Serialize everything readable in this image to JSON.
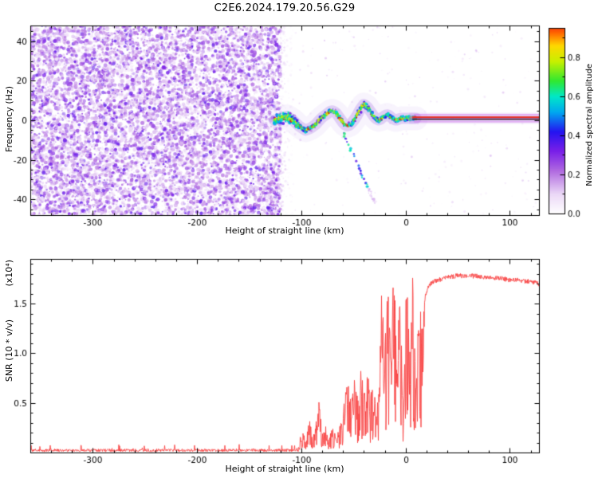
{
  "title": "C2E6.2024.179.20.56.G29",
  "chart_data": [
    {
      "type": "heatmap",
      "name": "spectrogram",
      "title": "C2E6.2024.179.20.56.G29",
      "xlabel": "Height of straight line (km)",
      "ylabel": "Frequency (Hz)",
      "xlim": [
        -360,
        128
      ],
      "ylim": [
        -48,
        48
      ],
      "xticks": [
        -300,
        -200,
        -100,
        0,
        100
      ],
      "yticks": [
        -40,
        -20,
        0,
        20,
        40
      ],
      "xticks_minor_step": 20,
      "yticks_minor_step": 5,
      "grid": false,
      "colorbar": {
        "label": "Normalized spectral amplitude",
        "ticks": [
          0.0,
          0.2,
          0.4,
          0.6,
          0.8
        ],
        "vmax": 0.95,
        "stops": [
          [
            0,
            "#ffffff"
          ],
          [
            0.1,
            "#ecd9f7"
          ],
          [
            0.22,
            "#b06ae0"
          ],
          [
            0.32,
            "#7a1fe8"
          ],
          [
            0.42,
            "#2414f0"
          ],
          [
            0.52,
            "#00a8f0"
          ],
          [
            0.6,
            "#00e8c8"
          ],
          [
            0.68,
            "#30e830"
          ],
          [
            0.78,
            "#c8f000"
          ],
          [
            0.86,
            "#ffd800"
          ],
          [
            0.93,
            "#ff6000"
          ],
          [
            1,
            "#e00028"
          ]
        ]
      },
      "noise_region": {
        "x_range": [
          -360,
          -120
        ],
        "amp_range": [
          0.06,
          0.36
        ],
        "note": "dense purple speckle noise across full frequency band"
      },
      "signal_path": [
        [
          -126,
          0
        ],
        [
          -120,
          1
        ],
        [
          -114,
          2
        ],
        [
          -108,
          0
        ],
        [
          -102,
          -3
        ],
        [
          -96,
          -5
        ],
        [
          -91,
          -4
        ],
        [
          -86,
          -2
        ],
        [
          -81,
          1
        ],
        [
          -76,
          3
        ],
        [
          -71,
          5
        ],
        [
          -67,
          4
        ],
        [
          -63,
          1
        ],
        [
          -59,
          -2
        ],
        [
          -55,
          -3
        ],
        [
          -51,
          -1
        ],
        [
          -47,
          2
        ],
        [
          -43,
          6
        ],
        [
          -40,
          8
        ],
        [
          -37,
          7
        ],
        [
          -33,
          4
        ],
        [
          -29,
          1
        ],
        [
          -25,
          0
        ],
        [
          -21,
          2
        ],
        [
          -17,
          3
        ],
        [
          -13,
          1
        ],
        [
          -9,
          0
        ],
        [
          -5,
          1
        ],
        [
          0,
          1
        ],
        [
          5,
          1
        ],
        [
          10,
          1
        ]
      ],
      "descending_streak": [
        [
          -60,
          -6
        ],
        [
          -36,
          -34
        ]
      ],
      "flat_line_region": {
        "x_range": [
          8,
          128
        ],
        "freq": 1,
        "note": "narrow red/dark horizontal line inside purple haze band"
      }
    },
    {
      "type": "line",
      "name": "snr",
      "xlabel": "Height of straight line (km)",
      "ylabel": "SNR (10 * v/v)",
      "ylabel_scale": "(x10⁴)",
      "xlim": [
        -360,
        128
      ],
      "ylim": [
        0,
        1.95
      ],
      "xticks": [
        -300,
        -200,
        -100,
        0,
        100
      ],
      "yticks": [
        0.5,
        1.0,
        1.5
      ],
      "xticks_minor_step": 20,
      "yticks_minor_step": 0.1,
      "line_color": "#f84242",
      "quiet_level": 0.022,
      "noise_zone": [
        -105,
        18
      ],
      "profile": [
        [
          -360,
          0.025
        ],
        [
          -115,
          0.025
        ],
        [
          -103,
          0.05
        ],
        [
          -99,
          0.28
        ],
        [
          -96,
          0.1
        ],
        [
          -92,
          0.38
        ],
        [
          -89,
          0.15
        ],
        [
          -86,
          0.3
        ],
        [
          -83,
          0.55
        ],
        [
          -80,
          0.22
        ],
        [
          -77,
          0.3
        ],
        [
          -74,
          0.12
        ],
        [
          -70,
          0.28
        ],
        [
          -66,
          0.15
        ],
        [
          -62,
          0.35
        ],
        [
          -58,
          0.6
        ],
        [
          -55,
          0.75
        ],
        [
          -52,
          0.5
        ],
        [
          -49,
          0.85
        ],
        [
          -46,
          0.55
        ],
        [
          -43,
          0.9
        ],
        [
          -40,
          0.65
        ],
        [
          -37,
          0.95
        ],
        [
          -34,
          0.6
        ],
        [
          -31,
          0.8
        ],
        [
          -28,
          0.5
        ],
        [
          -25,
          0.65
        ],
        [
          -23,
          1.9
        ],
        [
          -20,
          1.0
        ],
        [
          -17,
          1.85
        ],
        [
          -14,
          1.2
        ],
        [
          -11,
          1.95
        ],
        [
          -8,
          0.9
        ],
        [
          -5,
          1.9
        ],
        [
          -2,
          0.4
        ],
        [
          1,
          1.9
        ],
        [
          4,
          1.0
        ],
        [
          7,
          1.95
        ],
        [
          10,
          0.6
        ],
        [
          13,
          1.65
        ],
        [
          16,
          1.3
        ],
        [
          19,
          1.58
        ],
        [
          22,
          1.68
        ],
        [
          26,
          1.72
        ],
        [
          32,
          1.74
        ],
        [
          40,
          1.76
        ],
        [
          50,
          1.78
        ],
        [
          62,
          1.78
        ],
        [
          75,
          1.77
        ],
        [
          88,
          1.76
        ],
        [
          100,
          1.74
        ],
        [
          112,
          1.73
        ],
        [
          120,
          1.72
        ],
        [
          128,
          1.7
        ]
      ]
    }
  ]
}
